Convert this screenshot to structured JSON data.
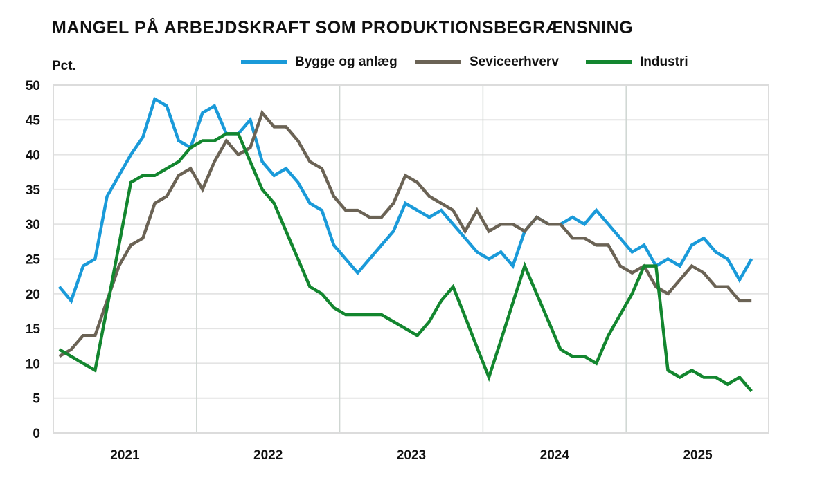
{
  "chart_data": {
    "type": "line",
    "title": "MANGEL PÅ ARBEJDSKRAFT SOM PRODUKTIONSBEGRÆNSNING",
    "xlabel": "",
    "ylabel": "Pct.",
    "ylim": [
      0,
      50
    ],
    "yticks": [
      "0",
      "5",
      "10",
      "15",
      "20",
      "25",
      "30",
      "35",
      "40",
      "45",
      "50"
    ],
    "xticks": [
      "2021",
      "2022",
      "2023",
      "2024",
      "2025"
    ],
    "x_frequency": "monthly",
    "x_start": "2021-01",
    "x_end": "2025-11",
    "grid": true,
    "legend_position": "top",
    "series": [
      {
        "name": "Bygge og anlæg",
        "color": "#1a9ad9",
        "values": [
          21,
          19,
          24,
          25,
          34,
          37,
          40,
          42.5,
          48,
          47,
          42,
          41,
          46,
          47,
          43,
          43,
          45,
          39,
          37,
          38,
          36,
          33,
          32,
          27,
          25,
          23,
          25,
          27,
          29,
          33,
          32,
          31,
          32,
          30,
          28,
          26,
          25,
          26,
          24,
          29,
          31,
          30,
          30,
          31,
          30,
          32,
          30,
          28,
          26,
          27,
          24,
          25,
          24,
          27,
          28,
          26,
          25,
          22,
          25
        ]
      },
      {
        "name": "Seviceerhverv",
        "color": "#6b6355",
        "values": [
          11,
          12,
          14,
          14,
          19,
          24,
          27,
          28,
          33,
          34,
          37,
          38,
          35,
          39,
          42,
          40,
          41,
          46,
          44,
          44,
          42,
          39,
          38,
          34,
          32,
          32,
          31,
          31,
          33,
          37,
          36,
          34,
          33,
          32,
          29,
          32,
          29,
          30,
          30,
          29,
          31,
          30,
          30,
          28,
          28,
          27,
          27,
          24,
          23,
          24,
          21,
          20,
          22,
          24,
          23,
          21,
          21,
          19,
          19
        ]
      },
      {
        "name": "Industri",
        "color": "#13862f",
        "values": [
          12,
          11,
          10,
          9,
          18,
          27,
          36,
          37,
          37,
          38,
          39,
          41,
          42,
          42,
          43,
          43,
          39,
          35,
          33,
          29,
          25,
          21,
          20,
          18,
          17,
          17,
          17,
          17,
          16,
          15,
          14,
          16,
          19,
          21,
          16.7,
          12.3,
          8,
          13.3,
          18.7,
          24,
          20,
          16,
          12,
          11,
          11,
          10,
          14,
          17,
          20,
          24,
          24,
          9,
          8,
          9,
          8,
          8,
          7,
          8,
          6
        ]
      }
    ]
  }
}
